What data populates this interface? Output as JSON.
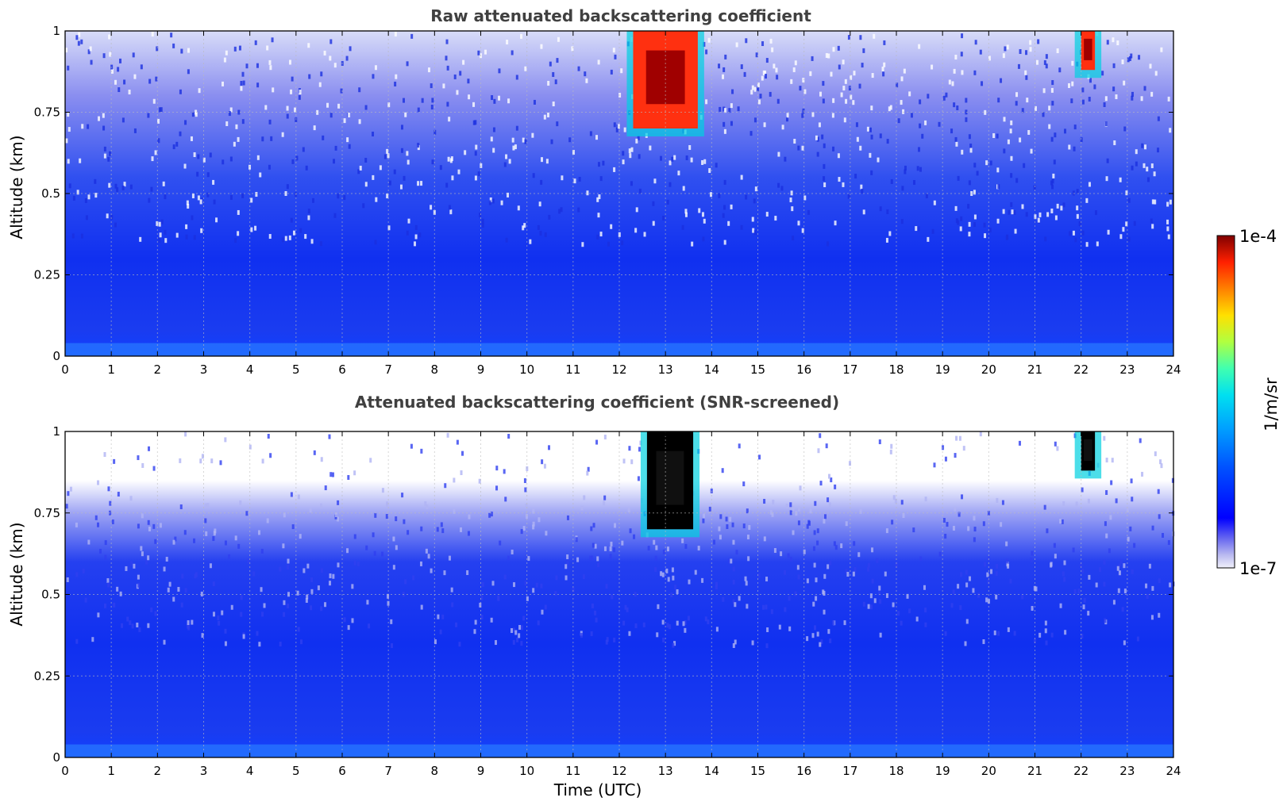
{
  "chart_data": [
    {
      "type": "heatmap",
      "title": "Raw attenuated backscattering coefficient",
      "ylabel": "Altitude (km)",
      "xlim": [
        0,
        24
      ],
      "ylim": [
        0,
        1
      ],
      "x_ticks": [
        "0",
        "1",
        "2",
        "3",
        "4",
        "5",
        "6",
        "7",
        "8",
        "9",
        "10",
        "11",
        "12",
        "13",
        "14",
        "15",
        "16",
        "17",
        "18",
        "19",
        "20",
        "21",
        "22",
        "23",
        "24"
      ],
      "y_ticks": [
        "0",
        "0.25",
        "0.5",
        "0.75",
        "1"
      ],
      "grid": true,
      "colormap": "jet",
      "clouds": [
        {
          "x_range": [
            12.3,
            13.7
          ],
          "y_range": [
            0.7,
            1.0
          ],
          "level": "high"
        },
        {
          "x_range": [
            22.0,
            22.3
          ],
          "y_range": [
            0.88,
            1.0
          ],
          "level": "high"
        }
      ]
    },
    {
      "type": "heatmap",
      "title": "Attenuated backscattering coefficient (SNR-screened)",
      "xlabel": "Time (UTC)",
      "ylabel": "Altitude (km)",
      "xlim": [
        0,
        24
      ],
      "ylim": [
        0,
        1
      ],
      "x_ticks": [
        "0",
        "1",
        "2",
        "3",
        "4",
        "5",
        "6",
        "7",
        "8",
        "9",
        "10",
        "11",
        "12",
        "13",
        "14",
        "15",
        "16",
        "17",
        "18",
        "19",
        "20",
        "21",
        "22",
        "23",
        "24"
      ],
      "y_ticks": [
        "0",
        "0.25",
        "0.5",
        "0.75",
        "1"
      ],
      "grid": true,
      "colormap": "jet",
      "clouds": [
        {
          "x_range": [
            12.6,
            13.6
          ],
          "y_range": [
            0.7,
            1.0
          ],
          "level": "saturated"
        },
        {
          "x_range": [
            22.0,
            22.3
          ],
          "y_range": [
            0.88,
            1.0
          ],
          "level": "saturated"
        }
      ]
    }
  ],
  "colorbar": {
    "label": "1/m/sr",
    "max_label": "1e-4",
    "min_label": "1e-7",
    "scale": "log",
    "colors": [
      "#f0f0fa",
      "#b8b8f0",
      "#6464f0",
      "#0000ff",
      "#0050ff",
      "#00a0ff",
      "#00e0f0",
      "#40ffb0",
      "#b0ff40",
      "#ffe000",
      "#ff8000",
      "#ff2000",
      "#800000"
    ]
  }
}
